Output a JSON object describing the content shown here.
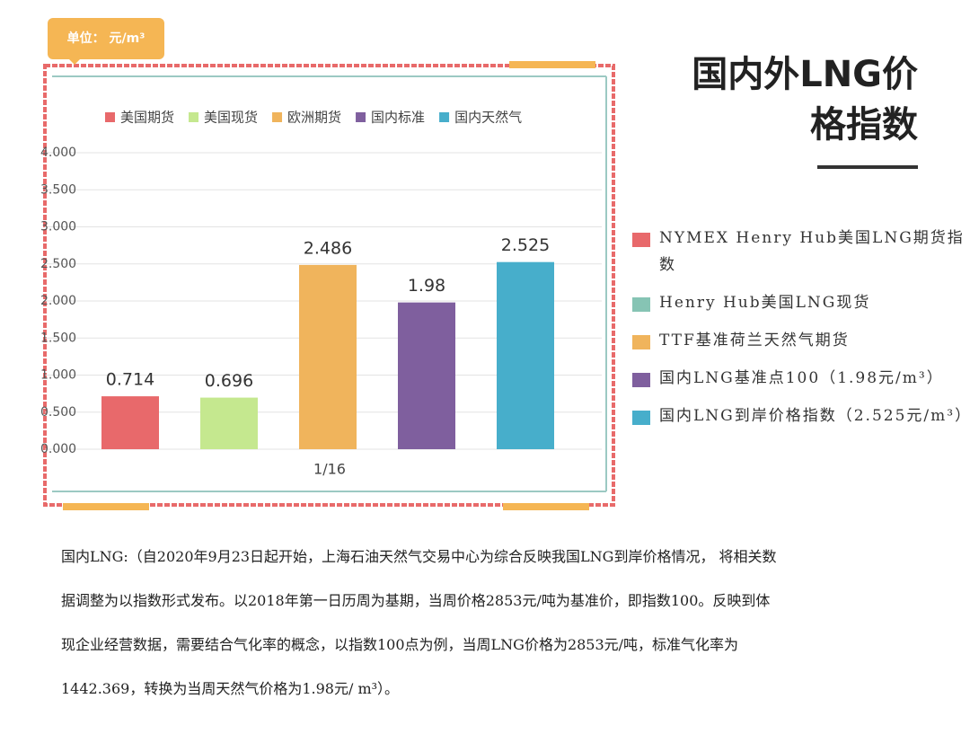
{
  "unit_badge": "单位：  元/m³",
  "heading": [
    "国内外LNG价",
    "格指数"
  ],
  "notes": [
    {
      "text": "NYMEX Henry Hub美国LNG期货指数",
      "color": "#e8696b"
    },
    {
      "text": "Henry Hub美国LNG现货",
      "color": "#86c4b4"
    },
    {
      "text": "TTF基准荷兰天然气期货",
      "color": "#f0b45c"
    },
    {
      "text": "国内LNG基准点100（1.98元/m³）",
      "color": "#7f5f9e"
    },
    {
      "text": "国内LNG到岸价格指数（2.525元/m³）",
      "color": "#47aecb"
    }
  ],
  "paragraph": [
    "国内LNG:（自2020年9月23日起开始，上海石油天然气交易中心为综合反映我国LNG到岸价格情况， 将相关数",
    "据调整为以指数形式发布。以2018年第一日历周为基期，当周价格2853元/吨为基准价，即指数100。反映到体",
    "现企业经营数据，需要结合气化率的概念，以指数100点为例，当周LNG价格为2853元/吨，标准气化率为",
    "1442.369，转换为当周天然气价格为1.98元/ m³）。"
  ],
  "chart_data": {
    "type": "bar",
    "categories": [
      "1/16"
    ],
    "series": [
      {
        "name": "美国期货",
        "color": "#e8696b",
        "values": [
          0.714
        ]
      },
      {
        "name": "美国现货",
        "color": "#c5e88f",
        "values": [
          0.696
        ]
      },
      {
        "name": "欧洲期货",
        "color": "#f0b45c",
        "values": [
          2.486
        ]
      },
      {
        "name": "国内标准",
        "color": "#7f5f9e",
        "values": [
          1.98
        ]
      },
      {
        "name": "国内天然气",
        "color": "#47aecb",
        "values": [
          2.525
        ]
      }
    ],
    "ylim": [
      0,
      4
    ],
    "yticks": [
      {
        "value": 0,
        "label": "0.000"
      },
      {
        "value": 0.5,
        "label": "0.500"
      },
      {
        "value": 1,
        "label": "1.000"
      },
      {
        "value": 1.5,
        "label": "1.500"
      },
      {
        "value": 2,
        "label": "2.000"
      },
      {
        "value": 2.5,
        "label": "2.500"
      },
      {
        "value": 3,
        "label": "3.000"
      },
      {
        "value": 3.5,
        "label": "3.500"
      },
      {
        "value": 4,
        "label": "4.000"
      }
    ],
    "grid": true,
    "legend": "top"
  }
}
